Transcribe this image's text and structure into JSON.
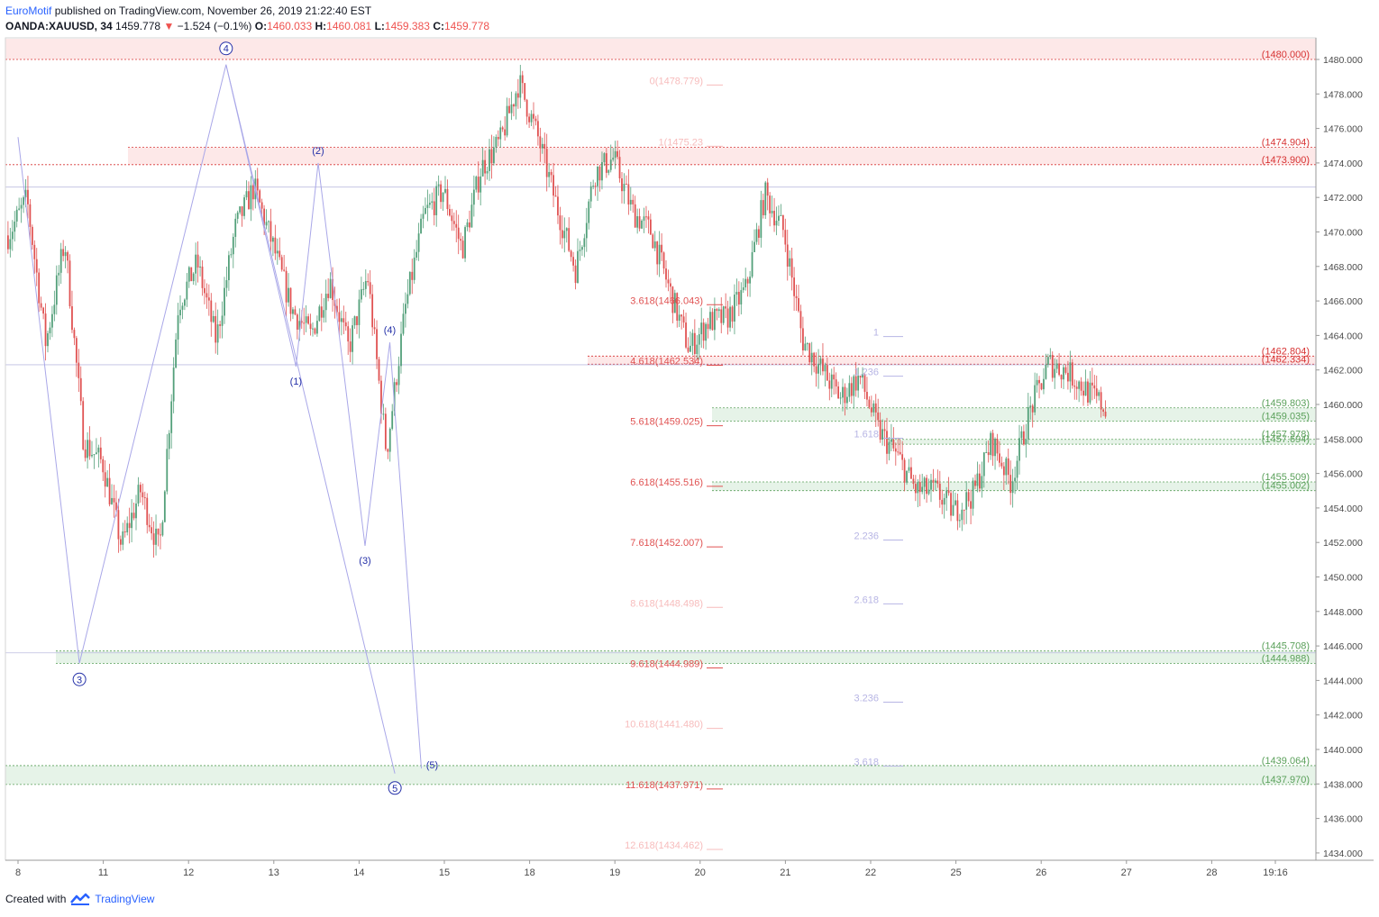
{
  "header": {
    "publisher": "EuroMotif",
    "published_text": "published on TradingView.com, November 26, 2019 21:22:40 EST",
    "symbol": "OANDA:XAUUSD, 34",
    "last": "1459.778",
    "change": "−1.524 (−0.1%)",
    "o_label": "O:",
    "o_val": "1460.033",
    "h_label": "H:",
    "h_val": "1460.081",
    "l_label": "L:",
    "l_val": "1459.383",
    "c_label": "C:",
    "c_val": "1459.778",
    "down_arrow": "▼"
  },
  "footer": {
    "created_with": "Created with",
    "brand": "TradingView"
  },
  "colors": {
    "up": "#53a07a",
    "down": "#e05252",
    "wave": "#a9a7e8",
    "fib_red": "#e05252",
    "fib_faint": "#f7bcbc",
    "fib_blue": "#b7b5e4",
    "zone_red": "#fde8e8",
    "zone_green": "#e6f3e8",
    "label_green": "#5aa05a",
    "label_red": "#d73333",
    "marker": "#2430a8"
  },
  "chart_data": {
    "type": "candlestick",
    "ylim": [
      1433.5,
      1482.5
    ],
    "y_ticks": [
      "1480.000",
      "1478.000",
      "1476.000",
      "1474.000",
      "1472.000",
      "1470.000",
      "1468.000",
      "1466.000",
      "1464.000",
      "1462.000",
      "1460.000",
      "1458.000",
      "1456.000",
      "1454.000",
      "1452.000",
      "1450.000",
      "1448.000",
      "1446.000",
      "1444.000",
      "1442.000",
      "1440.000",
      "1438.000",
      "1436.000",
      "1434.000"
    ],
    "x_ticks": [
      "8",
      "11",
      "12",
      "13",
      "14",
      "15",
      "18",
      "19",
      "20",
      "21",
      "22",
      "25",
      "26",
      "27",
      "28",
      "19:16"
    ],
    "price_lines": [
      {
        "label": "(1480.000)",
        "value": 1480.0,
        "color": "red"
      },
      {
        "label": "(1474.904)",
        "value": 1474.904,
        "color": "red"
      },
      {
        "label": "(1473.900)",
        "value": 1473.9,
        "color": "red"
      },
      {
        "label": "(1462.804)",
        "value": 1462.804,
        "color": "red"
      },
      {
        "label": "(1462.334)",
        "value": 1462.334,
        "color": "red"
      },
      {
        "label": "(1459.803)",
        "value": 1459.803,
        "color": "green"
      },
      {
        "label": "(1459.035)",
        "value": 1459.035,
        "color": "green"
      },
      {
        "label": "(1457.978)",
        "value": 1457.978,
        "color": "green"
      },
      {
        "label": "(1457.694)",
        "value": 1457.694,
        "color": "green"
      },
      {
        "label": "(1455.509)",
        "value": 1455.509,
        "color": "green"
      },
      {
        "label": "(1455.002)",
        "value": 1455.002,
        "color": "green"
      },
      {
        "label": "(1445.708)",
        "value": 1445.708,
        "color": "green"
      },
      {
        "label": "(1444.988)",
        "value": 1444.988,
        "color": "green"
      },
      {
        "label": "(1439.064)",
        "value": 1439.064,
        "color": "green"
      },
      {
        "label": "(1437.970)",
        "value": 1437.97,
        "color": "green"
      }
    ],
    "fib_extension": [
      {
        "label": "0(1478.779)",
        "value": 1478.779,
        "style": "faint"
      },
      {
        "label": "1(1475.23",
        "value": 1475.23,
        "style": "faint"
      },
      {
        "label": "3.618(1466.043)",
        "value": 1466.043,
        "style": "red"
      },
      {
        "label": "4.618(1462.534)",
        "value": 1462.534,
        "style": "red"
      },
      {
        "label": "5.618(1459.025)",
        "value": 1459.025,
        "style": "red"
      },
      {
        "label": "6.618(1455.516)",
        "value": 1455.516,
        "style": "red"
      },
      {
        "label": "7.618(1452.007)",
        "value": 1452.007,
        "style": "red"
      },
      {
        "label": "8.618(1448.498)",
        "value": 1448.498,
        "style": "faint"
      },
      {
        "label": "9.618(1444.989)",
        "value": 1444.989,
        "style": "red"
      },
      {
        "label": "10.618(1441.480)",
        "value": 1441.48,
        "style": "faint"
      },
      {
        "label": "11.618(1437.971)",
        "value": 1437.971,
        "style": "red"
      },
      {
        "label": "12.618(1434.462)",
        "value": 1434.462,
        "style": "faint"
      }
    ],
    "fib_wave": [
      {
        "label": "1",
        "value": 1464.2
      },
      {
        "label": "1.236",
        "value": 1461.9
      },
      {
        "label": "1.618",
        "value": 1458.3
      },
      {
        "label": "2.236",
        "value": 1452.4
      },
      {
        "label": "2.618",
        "value": 1448.7
      },
      {
        "label": "3.236",
        "value": 1443.0
      },
      {
        "label": "3.618",
        "value": 1439.3
      }
    ],
    "wave_labels": [
      {
        "label": "4",
        "circled": true
      },
      {
        "label": "3",
        "circled": true
      },
      {
        "label": "5",
        "circled": true
      },
      {
        "label": "(1)",
        "circled": false
      },
      {
        "label": "(2)",
        "circled": false
      },
      {
        "label": "(3)",
        "circled": false
      },
      {
        "label": "(4)",
        "circled": false
      },
      {
        "label": "(5)",
        "circled": false
      }
    ],
    "wave_points": {
      "major": [
        [
          0,
          1475.5
        ],
        [
          0.72,
          1445.0
        ],
        [
          2.44,
          1479.7
        ],
        [
          4.42,
          1438.6
        ]
      ],
      "minor": [
        [
          2.44,
          1479.7
        ],
        [
          3.26,
          1462.2
        ],
        [
          3.52,
          1474.0
        ],
        [
          4.07,
          1451.8
        ],
        [
          4.36,
          1463.6
        ],
        [
          4.73,
          1438.9
        ]
      ]
    },
    "key_prices": [
      1469.8,
      1471.9,
      1463.5,
      1469.5,
      1457.8,
      1456.6,
      1451.8,
      1455.0,
      1451.5,
      1465.8,
      1468.2,
      1463.7,
      1470.2,
      1472.6,
      1469.2,
      1465.5,
      1464.0,
      1467.2,
      1463.2,
      1467.5,
      1457.2,
      1465.6,
      1471.0,
      1472.4,
      1469.0,
      1473.7,
      1475.2,
      1478.7,
      1475.5,
      1471.5,
      1467.8,
      1473.4,
      1474.3,
      1471.2,
      1470.0,
      1466.5,
      1463.2,
      1464.8,
      1465.0,
      1466.7,
      1472.2,
      1470.0,
      1463.7,
      1462.0,
      1460.4,
      1461.6,
      1458.5,
      1457.0,
      1455.0,
      1455.0,
      1453.8,
      1454.8,
      1457.9,
      1455.5,
      1459.6,
      1462.4,
      1461.9,
      1460.8,
      1459.8
    ]
  }
}
